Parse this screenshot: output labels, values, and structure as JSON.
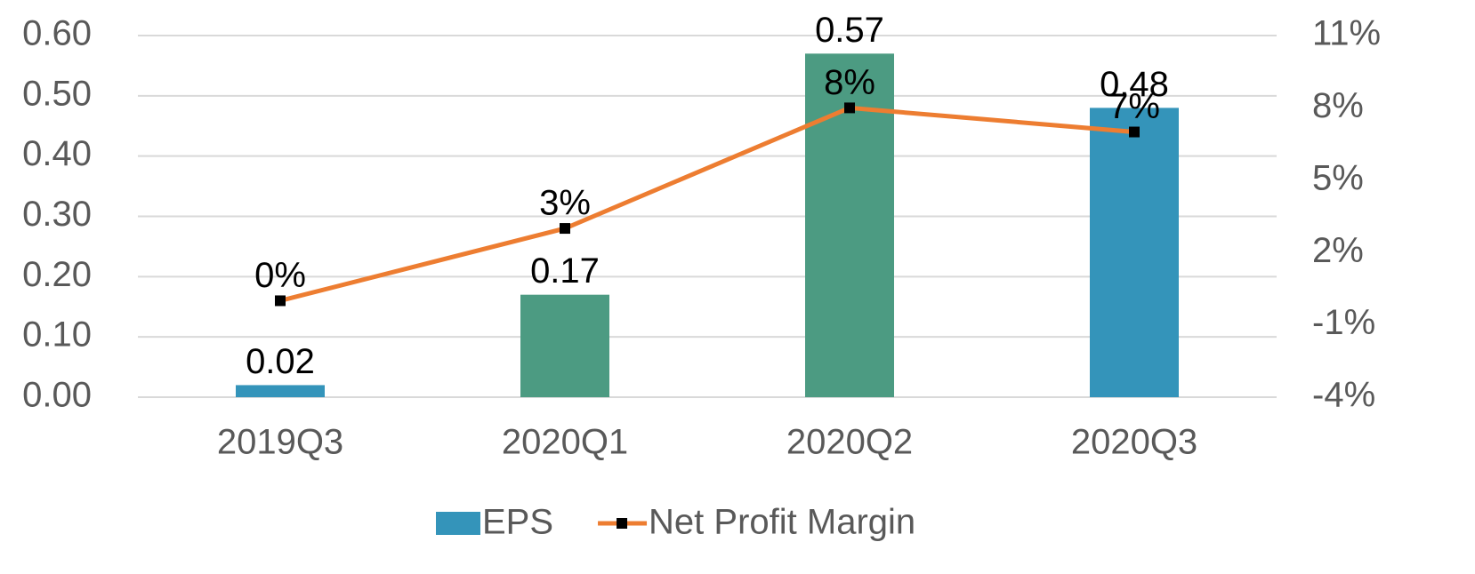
{
  "chart_data": {
    "type": "bar_line",
    "categories": [
      "2019Q3",
      "2020Q1",
      "2020Q2",
      "2020Q3"
    ],
    "series": [
      {
        "name": "EPS",
        "type": "bar",
        "color": "#3494ba",
        "colors": [
          "#3494ba",
          "#4c9b82",
          "#4c9b82",
          "#3494ba"
        ],
        "values": [
          0.02,
          0.17,
          0.57,
          0.48
        ]
      },
      {
        "name": "Net Profit Margin",
        "type": "line",
        "axis": "y2",
        "color": "#ed7d31",
        "marker_color": "#000000",
        "values": [
          0,
          3,
          8,
          7
        ],
        "value_labels": [
          "0%",
          "3%",
          "8%",
          "7%"
        ]
      }
    ],
    "ylim": [
      0,
      0.6
    ],
    "yticks": [
      {
        "value": 0,
        "label": "0.00"
      },
      {
        "value": 0.1,
        "label": "0.10"
      },
      {
        "value": 0.2,
        "label": "0.20"
      },
      {
        "value": 0.3,
        "label": "0.30"
      },
      {
        "value": 0.4,
        "label": "0.40"
      },
      {
        "value": 0.5,
        "label": "0.50"
      },
      {
        "value": 0.6,
        "label": "0.60"
      }
    ],
    "y2lim": [
      -4,
      11
    ],
    "y2ticks": [
      {
        "value": -4,
        "label": "-4%"
      },
      {
        "value": -1,
        "label": "-1%"
      },
      {
        "value": 2,
        "label": "2%"
      },
      {
        "value": 5,
        "label": "5%"
      },
      {
        "value": 8,
        "label": "8%"
      },
      {
        "value": 11,
        "label": "11%"
      }
    ],
    "grid": true,
    "legend": "bottom"
  }
}
